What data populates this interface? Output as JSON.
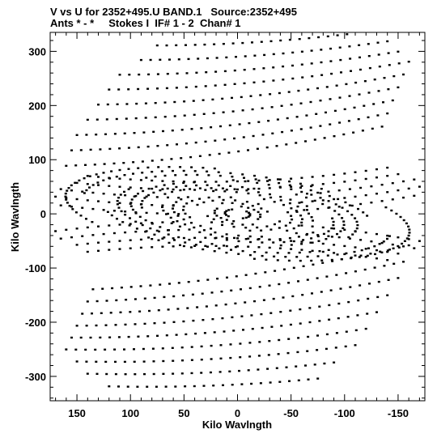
{
  "header": {
    "title_line1": "V vs U for 2352+495.U BAND.1   Source:2352+495",
    "title_line2": "Ants * - *     Stokes I  IF# 1 - 2  Chan# 1"
  },
  "chart_data": {
    "type": "scatter",
    "title": "V vs U for 2352+495.U BAND.1   Source:2352+495",
    "subtitle": "Ants * - *     Stokes I  IF# 1 - 2  Chan# 1",
    "xlabel": "Kilo Wavlngth",
    "ylabel": "Kilo Wavlngth",
    "xlim": [
      175,
      -175
    ],
    "ylim": [
      -345,
      335
    ],
    "x_reversed": true,
    "x_ticks": [
      150,
      100,
      50,
      0,
      -50,
      -100,
      -150
    ],
    "x_tick_labels": [
      "150",
      "100",
      "50",
      "0",
      "-50",
      "-100",
      "-150"
    ],
    "y_ticks": [
      300,
      200,
      100,
      0,
      -100,
      -200,
      -300
    ],
    "y_tick_labels": [
      "300",
      "200",
      "100",
      "0",
      "-100",
      "-200",
      "-300"
    ],
    "grid": false,
    "legend": "none",
    "marker_color": "#000000",
    "uv_tracks": {
      "description_values_in_kilo_wavelength": true,
      "elliptical_tracks": [
        {
          "a": 12,
          "b": 8,
          "tilt_deg": 15
        },
        {
          "a": 22,
          "b": 14,
          "tilt_deg": 15
        },
        {
          "a": 32,
          "b": 19,
          "tilt_deg": 15
        },
        {
          "a": 42,
          "b": 24,
          "tilt_deg": 15
        },
        {
          "a": 52,
          "b": 29,
          "tilt_deg": 15
        },
        {
          "a": 62,
          "b": 34,
          "tilt_deg": 15
        },
        {
          "a": 72,
          "b": 39,
          "tilt_deg": 15
        },
        {
          "a": 82,
          "b": 44,
          "tilt_deg": 15
        },
        {
          "a": 92,
          "b": 49,
          "tilt_deg": 15
        },
        {
          "a": 102,
          "b": 54,
          "tilt_deg": 15
        },
        {
          "a": 115,
          "b": 60,
          "tilt_deg": 15
        },
        {
          "a": 130,
          "b": 66,
          "tilt_deg": 15
        },
        {
          "a": 148,
          "b": 72,
          "tilt_deg": 15
        },
        {
          "a": 165,
          "b": 78,
          "tilt_deg": 15
        }
      ],
      "arc_tracks": [
        {
          "v_center": 315,
          "u_from": 75,
          "u_to": -120,
          "tilt": -0.1
        },
        {
          "v_center": 290,
          "u_from": 90,
          "u_to": -140,
          "tilt": -0.12
        },
        {
          "v_center": 265,
          "u_from": 110,
          "u_to": -150,
          "tilt": -0.14
        },
        {
          "v_center": 240,
          "u_from": 120,
          "u_to": -160,
          "tilt": -0.16
        },
        {
          "v_center": 215,
          "u_from": 130,
          "u_to": -155,
          "tilt": -0.18
        },
        {
          "v_center": 190,
          "u_from": 140,
          "u_to": -150,
          "tilt": -0.2
        },
        {
          "v_center": 165,
          "u_from": 150,
          "u_to": -145,
          "tilt": -0.22
        },
        {
          "v_center": 140,
          "u_from": 155,
          "u_to": -140,
          "tilt": -0.24
        },
        {
          "v_center": 115,
          "u_from": 160,
          "u_to": -135,
          "tilt": -0.26
        },
        {
          "v_center": -115,
          "u_from": 135,
          "u_to": -160,
          "tilt": -0.26
        },
        {
          "v_center": -140,
          "u_from": 140,
          "u_to": -155,
          "tilt": -0.24
        },
        {
          "v_center": -165,
          "u_from": 145,
          "u_to": -150,
          "tilt": -0.22
        },
        {
          "v_center": -190,
          "u_from": 150,
          "u_to": -140,
          "tilt": -0.2
        },
        {
          "v_center": -215,
          "u_from": 155,
          "u_to": -130,
          "tilt": -0.18
        },
        {
          "v_center": -240,
          "u_from": 160,
          "u_to": -120,
          "tilt": -0.16
        },
        {
          "v_center": -265,
          "u_from": 150,
          "u_to": -110,
          "tilt": -0.14
        },
        {
          "v_center": -290,
          "u_from": 140,
          "u_to": -90,
          "tilt": -0.12
        },
        {
          "v_center": -315,
          "u_from": 120,
          "u_to": -75,
          "tilt": -0.1
        }
      ]
    }
  }
}
